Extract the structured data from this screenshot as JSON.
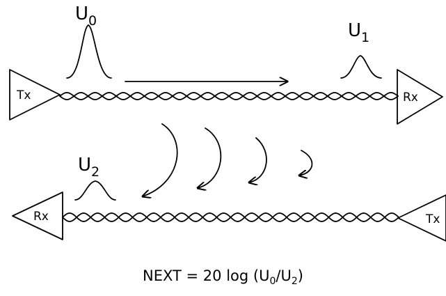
{
  "labels": {
    "v0": {
      "main": "U",
      "sub": "0"
    },
    "v1": {
      "main": "U",
      "sub": "1"
    },
    "v2": {
      "main": "U",
      "sub": "2"
    },
    "tx_top": "Tx",
    "rx_top": "Rx",
    "rx_bottom": "Rx",
    "tx_bottom": "Tx"
  },
  "formula": {
    "prefix": "NEXT = 20 log (U",
    "sub_a": "0",
    "mid": "/U",
    "sub_b": "2",
    "suffix": ")"
  }
}
